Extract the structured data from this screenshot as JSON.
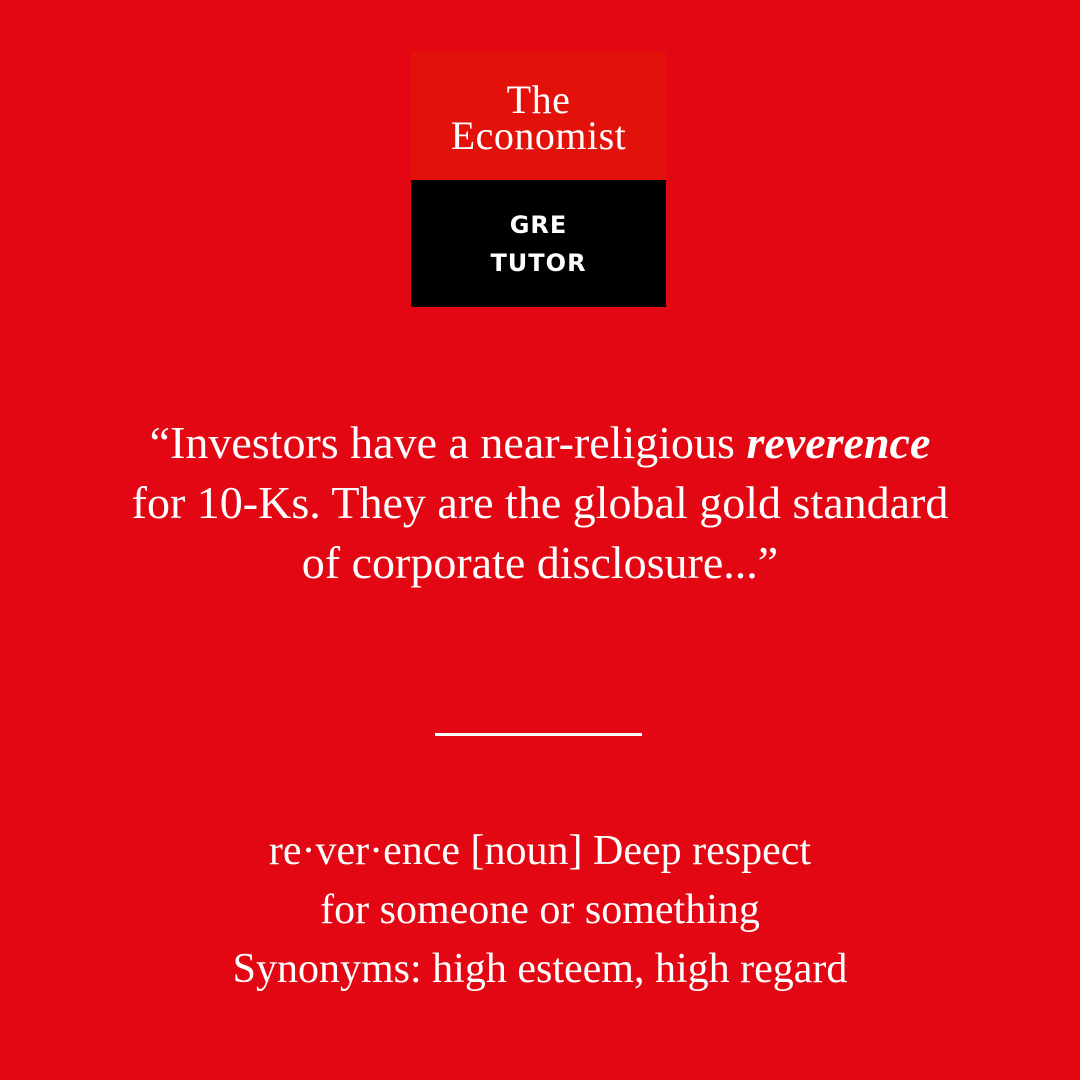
{
  "logo": {
    "brand_line1": "The",
    "brand_line2": "Economist",
    "product_line1": "GRE",
    "product_line2": "TUTOR",
    "brand_color": "#e2120b",
    "product_bg": "#000000"
  },
  "quote": {
    "before": "“Investors have a near-religious ",
    "keyword": "reverence",
    "after": " for 10-Ks. They are the global gold standard of corporate disclosure...”"
  },
  "definition": {
    "line1": "re·ver·ence [noun] Deep respect",
    "line2": "for someone or something",
    "line3": "Synonyms: high esteem, high regard"
  },
  "colors": {
    "background": "#e30613",
    "text": "#ffffff"
  }
}
